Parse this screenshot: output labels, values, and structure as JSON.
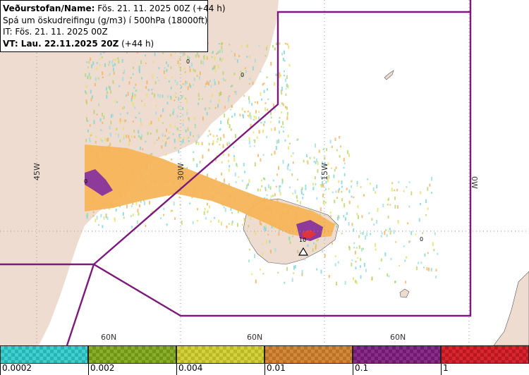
{
  "info": {
    "line1_bold": "Veðurstofan/Name:",
    "line1_rest": " Fös. 21. 11. 2025 00Z (+44 h)",
    "line2": "Spá um öskudreifingu (g/m3) í 500hPa (18000ft)",
    "line3": "IT: Fös. 21. 11. 2025 00Z",
    "line4_bold": "VT: Lau. 22.11.2025 20Z",
    "line4_rest": " (+44 h)"
  },
  "map": {
    "longitude_labels": [
      "45W",
      "30W",
      "15W",
      "0W"
    ],
    "latitude_labels": [
      "60N",
      "60N",
      "60N"
    ],
    "contour_labels": [
      "0",
      "0",
      "0",
      "0",
      "10"
    ],
    "colors": {
      "land": "#efdcd0",
      "sea": "#ffffff",
      "boundary": "#7b1a7b",
      "ash_orange": "#f6b457",
      "ash_purple": "#8d3a9b",
      "ash_red": "#e0343c"
    }
  },
  "legend": {
    "swatches": [
      {
        "name": "0.0002-0.002",
        "color": "#3fd0d0",
        "alt": "#2ab3b3"
      },
      {
        "name": "0.002-0.004",
        "color": "#8aae2a",
        "alt": "#6f9418"
      },
      {
        "name": "0.004-0.01",
        "color": "#d4d23a",
        "alt": "#bcb928"
      },
      {
        "name": "0.01-0.1",
        "color": "#d2893a",
        "alt": "#bb7228"
      },
      {
        "name": "0.1-1",
        "color": "#8a2c8a",
        "alt": "#6f1a6f"
      },
      {
        "name": "1+",
        "color": "#d9262e",
        "alt": "#b81820"
      }
    ],
    "tick_labels": [
      "0.0002",
      "0.002",
      "0.004",
      "0.01",
      "0.1",
      "1"
    ]
  }
}
